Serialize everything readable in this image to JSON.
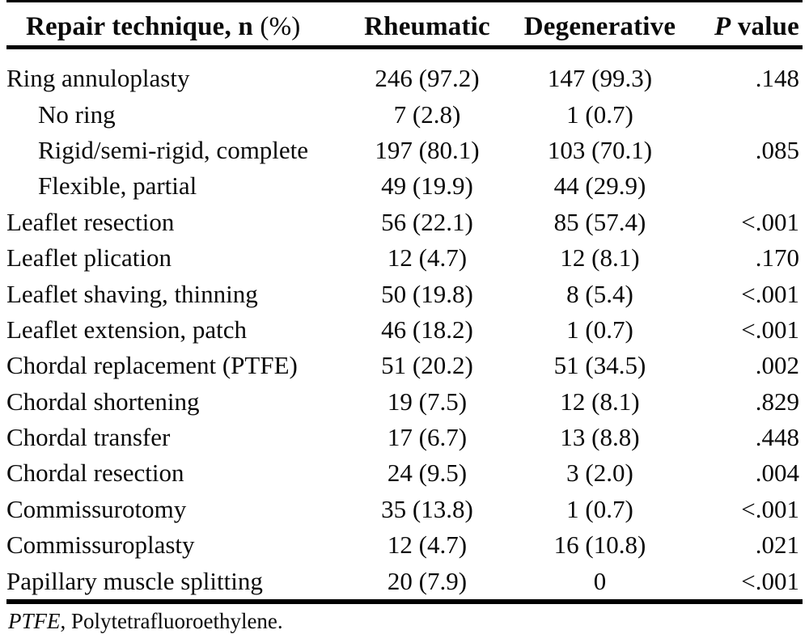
{
  "table": {
    "header": {
      "technique_bold": "Repair technique, n ",
      "technique_unit": "(%)",
      "rheumatic": "Rheumatic",
      "degenerative": "Degenerative",
      "p_italic": "P",
      "p_rest": " value"
    },
    "rows": [
      {
        "label": "Ring annuloplasty",
        "indent": false,
        "rheumatic": "246 (97.2)",
        "degenerative": "147 (99.3)",
        "p": ".148"
      },
      {
        "label": "No ring",
        "indent": true,
        "rheumatic": "7 (2.8)",
        "degenerative": "1 (0.7)",
        "p": ""
      },
      {
        "label": "Rigid/semi-rigid, complete",
        "indent": true,
        "rheumatic": "197 (80.1)",
        "degenerative": "103 (70.1)",
        "p": ".085"
      },
      {
        "label": "Flexible, partial",
        "indent": true,
        "rheumatic": "49 (19.9)",
        "degenerative": "44 (29.9)",
        "p": ""
      },
      {
        "label": "Leaflet resection",
        "indent": false,
        "rheumatic": "56 (22.1)",
        "degenerative": "85 (57.4)",
        "p": "<.001"
      },
      {
        "label": "Leaflet plication",
        "indent": false,
        "rheumatic": "12 (4.7)",
        "degenerative": "12 (8.1)",
        "p": ".170"
      },
      {
        "label": "Leaflet shaving, thinning",
        "indent": false,
        "rheumatic": "50 (19.8)",
        "degenerative": "8 (5.4)",
        "p": "<.001"
      },
      {
        "label": "Leaflet extension, patch",
        "indent": false,
        "rheumatic": "46 (18.2)",
        "degenerative": "1 (0.7)",
        "p": "<.001"
      },
      {
        "label": "Chordal replacement (PTFE)",
        "indent": false,
        "rheumatic": "51 (20.2)",
        "degenerative": "51 (34.5)",
        "p": ".002"
      },
      {
        "label": "Chordal shortening",
        "indent": false,
        "rheumatic": "19 (7.5)",
        "degenerative": "12 (8.1)",
        "p": ".829"
      },
      {
        "label": "Chordal transfer",
        "indent": false,
        "rheumatic": "17 (6.7)",
        "degenerative": "13 (8.8)",
        "p": ".448"
      },
      {
        "label": "Chordal resection",
        "indent": false,
        "rheumatic": "24 (9.5)",
        "degenerative": "3 (2.0)",
        "p": ".004"
      },
      {
        "label": "Commissurotomy",
        "indent": false,
        "rheumatic": "35 (13.8)",
        "degenerative": "1 (0.7)",
        "p": "<.001"
      },
      {
        "label": "Commissuroplasty",
        "indent": false,
        "rheumatic": "12 (4.7)",
        "degenerative": "16 (10.8)",
        "p": ".021"
      },
      {
        "label": "Papillary muscle splitting",
        "indent": false,
        "rheumatic": "20 (7.9)",
        "degenerative": "0",
        "p": "<.001"
      }
    ],
    "footnote": {
      "abbr": "PTFE",
      "rest": ", Polytetrafluoroethylene."
    }
  }
}
